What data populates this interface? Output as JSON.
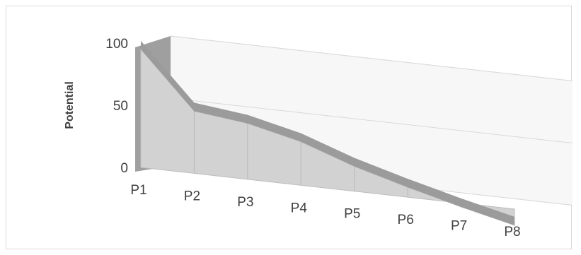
{
  "chart_data": {
    "type": "area",
    "style": "3d-area",
    "categories": [
      "P1",
      "P2",
      "P3",
      "P4",
      "P5",
      "P6",
      "P7",
      "P8"
    ],
    "series": [
      {
        "values": [
          95,
          50,
          45,
          35,
          20,
          8,
          -3,
          -13
        ]
      }
    ],
    "ylabel": "Potential",
    "xlabel": "",
    "title": "",
    "yticks": [
      0,
      50,
      100
    ],
    "ylim": [
      0,
      100
    ],
    "grid": true,
    "legend": "none",
    "colors": {
      "area_fill": "#d2d2d2",
      "top_band": "#9b9b9b",
      "side_wall": "#9f9f9f",
      "back_wall": "#f7f7f7",
      "gridline": "#d9d9d9",
      "text": "#404040"
    }
  }
}
